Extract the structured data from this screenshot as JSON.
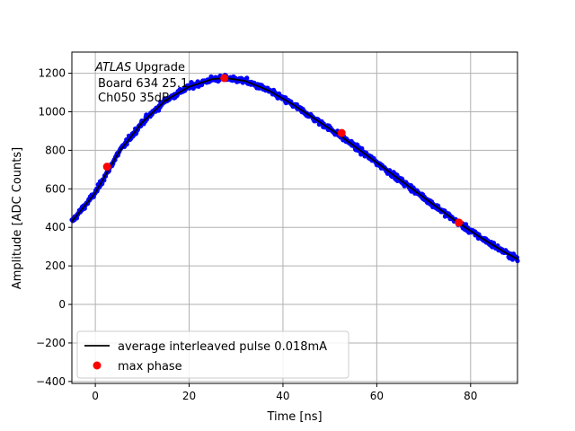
{
  "chart_data": {
    "type": "scatter",
    "title": "",
    "xlabel": "Time [ns]",
    "ylabel": "Amplitude [ADC Counts]",
    "xlim": [
      -5,
      90
    ],
    "ylim": [
      -410,
      1310
    ],
    "xticks": [
      0,
      20,
      40,
      60,
      80
    ],
    "yticks": [
      -400,
      -200,
      0,
      200,
      400,
      600,
      800,
      1000,
      1200
    ],
    "xtick_labels": [
      "0",
      "20",
      "40",
      "60",
      "80"
    ],
    "ytick_labels": [
      "−400",
      "−200",
      "0",
      "200",
      "400",
      "600",
      "800",
      "1000",
      "1200"
    ],
    "grid": true,
    "legend_position": "lower-left",
    "annotation": {
      "line1_italic": "ATLAS",
      "line1_rest": " Upgrade",
      "line2": "Board 634 25.1",
      "line3": "Ch050 35dB"
    },
    "series": [
      {
        "name": "average interleaved pulse 0.018mA",
        "kind": "line",
        "color": "#000000",
        "x": [
          -5,
          0,
          5,
          10,
          15,
          20,
          25,
          28,
          32,
          37,
          42,
          47,
          52,
          57,
          62,
          67,
          72,
          77,
          82,
          87,
          90
        ],
        "y": [
          430,
          580,
          790,
          945,
          1060,
          1130,
          1170,
          1175,
          1160,
          1110,
          1040,
          960,
          880,
          790,
          700,
          610,
          520,
          430,
          350,
          275,
          235
        ]
      },
      {
        "name": "",
        "kind": "scatter",
        "color": "#0000ff",
        "note_points": "sampled measurements scattered around the average pulse",
        "x": [
          -5,
          0,
          5,
          10,
          15,
          20,
          25,
          28,
          32,
          37,
          42,
          47,
          52,
          57,
          62,
          67,
          72,
          77,
          82,
          87,
          90
        ],
        "y": [
          430,
          580,
          790,
          945,
          1060,
          1130,
          1170,
          1175,
          1160,
          1110,
          1040,
          960,
          880,
          790,
          700,
          610,
          520,
          430,
          350,
          275,
          235
        ]
      },
      {
        "name": "max phase",
        "kind": "marker",
        "color": "#ff0000",
        "x": [
          2.5,
          27.5,
          52.5,
          77.5
        ],
        "y": [
          715,
          1175,
          890,
          425
        ]
      }
    ]
  }
}
